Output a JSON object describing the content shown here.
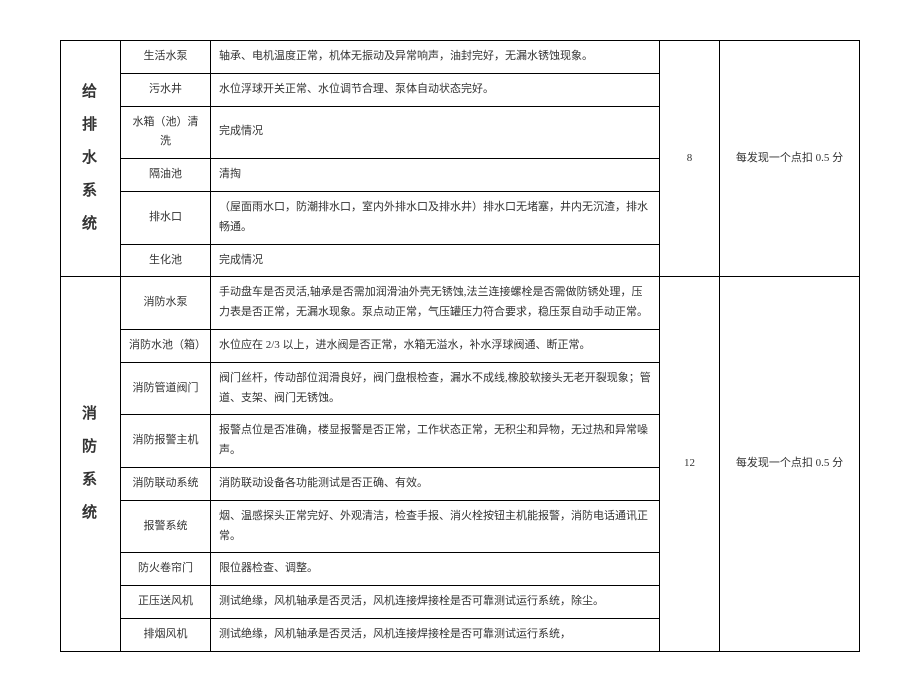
{
  "sections": [
    {
      "category": "给\n排\n水\n系\n统",
      "score": "8",
      "deduction": "每发现一个点扣 0.5 分",
      "items": [
        {
          "name": "生活水泵",
          "desc": "轴承、电机温度正常，机体无振动及异常响声，油封完好，无漏水锈蚀现象。"
        },
        {
          "name": "污水井",
          "desc": "水位浮球开关正常、水位调节合理、泵体自动状态完好。"
        },
        {
          "name": "水箱（池）清洗",
          "desc": "完成情况"
        },
        {
          "name": "隔油池",
          "desc": "清掏"
        },
        {
          "name": "排水口",
          "desc": "（屋面雨水口，防潮排水口，室内外排水口及排水井）排水口无堵塞，井内无沉渣，排水畅通。"
        },
        {
          "name": "生化池",
          "desc": "完成情况"
        }
      ]
    },
    {
      "category": "消\n防\n系\n统",
      "score": "12",
      "deduction": "每发现一个点扣 0.5 分",
      "items": [
        {
          "name": "消防水泵",
          "desc": "手动盘车是否灵活,轴承是否需加润滑油外壳无锈蚀,法兰连接螺栓是否需做防锈处理，压力表是否正常，无漏水现象。泵点动正常，气压罐压力符合要求，稳压泵自动手动正常。"
        },
        {
          "name": "消防水池（箱）",
          "desc": "水位应在 2/3 以上，进水阀是否正常，水箱无溢水，补水浮球阀通、断正常。"
        },
        {
          "name": "消防管道阀门",
          "desc": "阀门丝杆，传动部位润滑良好，阀门盘根检查，漏水不成线,橡胶软接头无老开裂现象；管道、支架、阀门无锈蚀。"
        },
        {
          "name": "消防报警主机",
          "desc": "报警点位是否准确，楼显报警是否正常，工作状态正常，无积尘和异物，无过热和异常噪声。"
        },
        {
          "name": "消防联动系统",
          "desc": "消防联动设备各功能测试是否正确、有效。"
        },
        {
          "name": "报警系统",
          "desc": "烟、温感探头正常完好、外观清洁，检查手报、消火栓按钮主机能报警，消防电话通讯正常。"
        },
        {
          "name": "防火卷帘门",
          "desc": "限位器检查、调整。"
        },
        {
          "name": "正压送风机",
          "desc": "测试绝缘，风机轴承是否灵活，风机连接焊接栓是否可靠测试运行系统，除尘。"
        },
        {
          "name": "排烟风机",
          "desc": "测试绝缘，风机轴承是否灵活，风机连接焊接栓是否可靠测试运行系统，"
        }
      ]
    }
  ]
}
